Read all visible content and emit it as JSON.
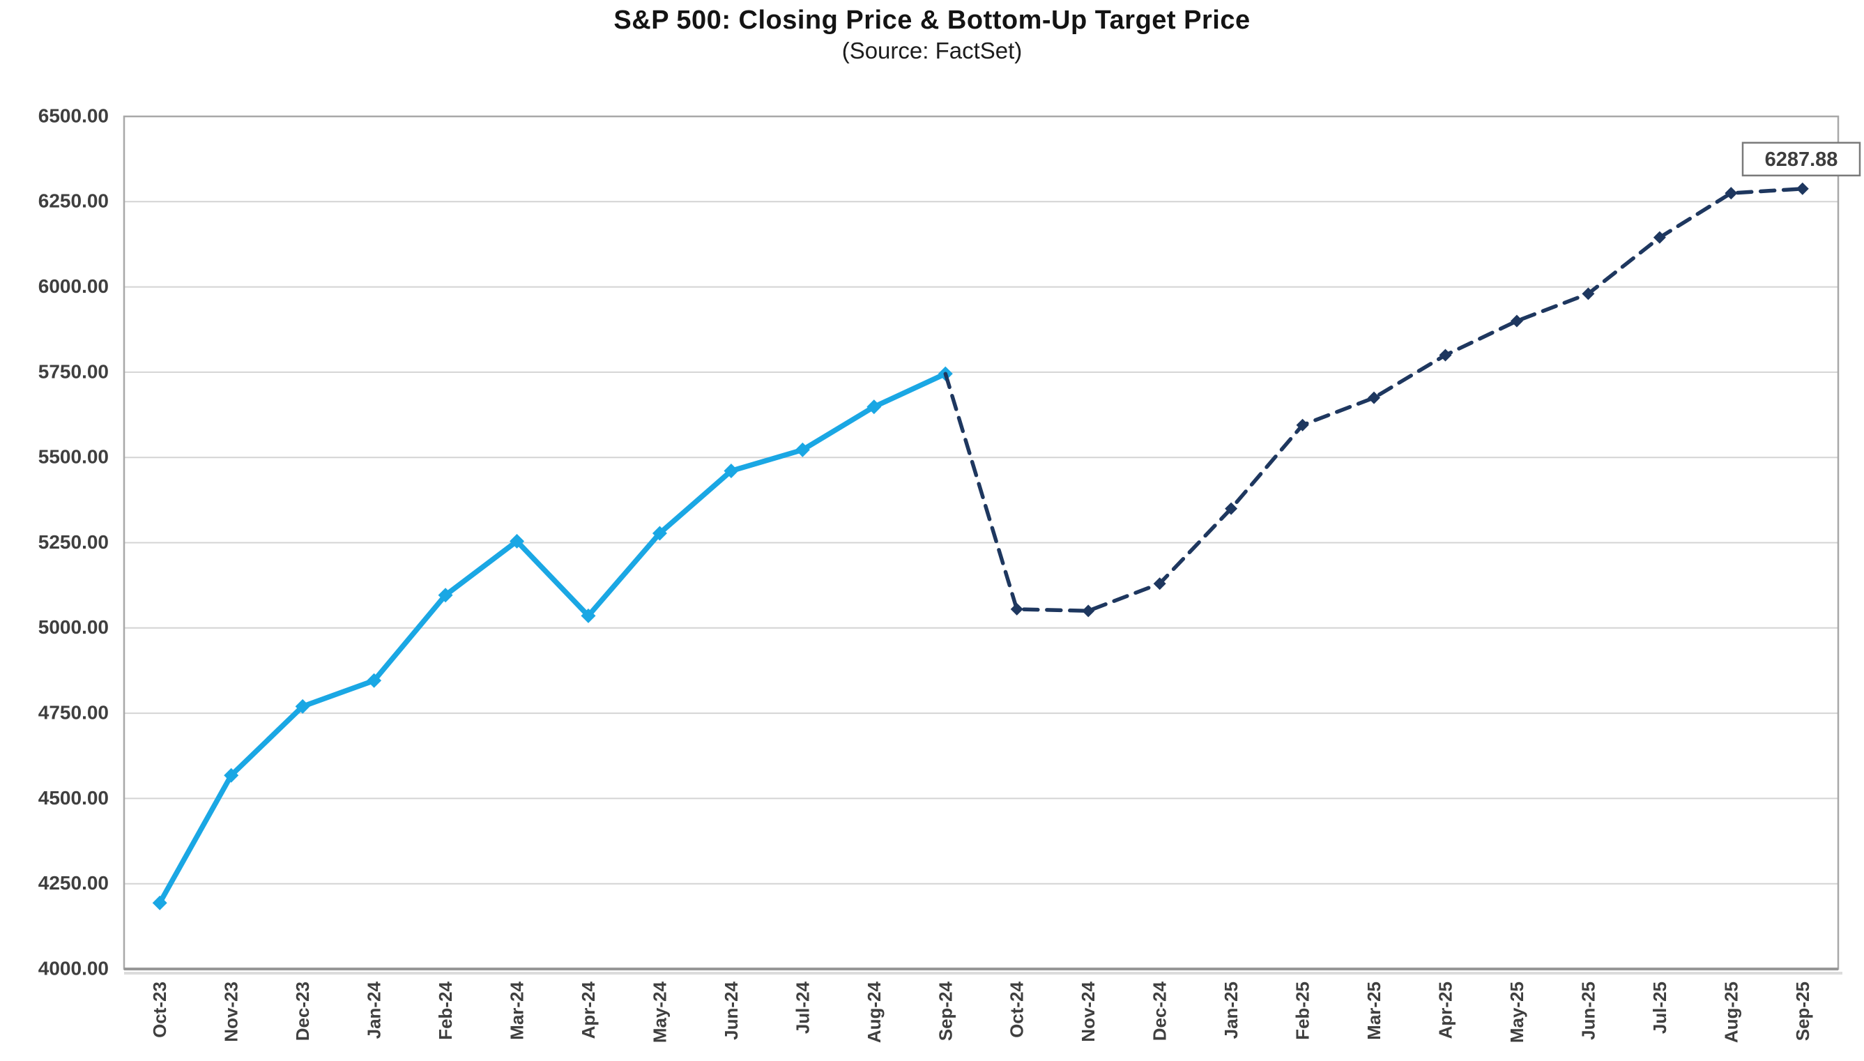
{
  "header": {
    "title": "S&P 500: Closing Price & Bottom-Up Target Price",
    "subtitle": "(Source: FactSet)"
  },
  "chart_data": {
    "type": "line",
    "title": "S&P 500: Closing Price & Bottom-Up Target Price",
    "subtitle": "(Source: FactSet)",
    "grid": "horizontal",
    "legend": "none",
    "categories": [
      "Oct-23",
      "Nov-23",
      "Dec-23",
      "Jan-24",
      "Feb-24",
      "Mar-24",
      "Apr-24",
      "May-24",
      "Jun-24",
      "Jul-24",
      "Aug-24",
      "Sep-24",
      "Oct-24",
      "Nov-24",
      "Dec-24",
      "Jan-25",
      "Feb-25",
      "Mar-25",
      "Apr-25",
      "May-25",
      "Jun-25",
      "Jul-25",
      "Aug-25",
      "Sep-25"
    ],
    "x_axis": {
      "label_rotation": -90
    },
    "y_axis": {
      "min": 4000,
      "max": 6500,
      "step": 250,
      "decimals": 2
    },
    "series": [
      {
        "name": "Closing Price",
        "style": "solid",
        "color": "#1aa7e4",
        "marker": "diamond",
        "values": [
          4193.8,
          4567.8,
          4769.83,
          4845.65,
          5096.27,
          5254.35,
          5035.69,
          5277.51,
          5460.48,
          5522.3,
          5648.4,
          5745.37,
          null,
          null,
          null,
          null,
          null,
          null,
          null,
          null,
          null,
          null,
          null,
          null
        ]
      },
      {
        "name": "Bottom-Up Target Price",
        "style": "dashed",
        "color": "#1e375f",
        "marker": "diamond",
        "marker_from_index": 12,
        "values": [
          null,
          null,
          null,
          null,
          null,
          null,
          null,
          null,
          null,
          null,
          null,
          5745.37,
          5055,
          5050,
          5130,
          5350,
          5595,
          5675,
          5800,
          5900,
          5980,
          6145,
          6275,
          6287.88
        ]
      }
    ],
    "annotation": {
      "text": "6287.88",
      "series": "Bottom-Up Target Price",
      "category": "Sep-25"
    },
    "colors": {
      "closing_line": "#1aa7e4",
      "target_line": "#1e375f",
      "gridline": "#d4d4d4",
      "plot_border": "#a8a8a8",
      "axis_shadow": "#dcdcdc",
      "tick_text": "#3f3f3f",
      "label_box_border": "#7a7a7a",
      "label_box_fill": "#ffffff"
    }
  }
}
